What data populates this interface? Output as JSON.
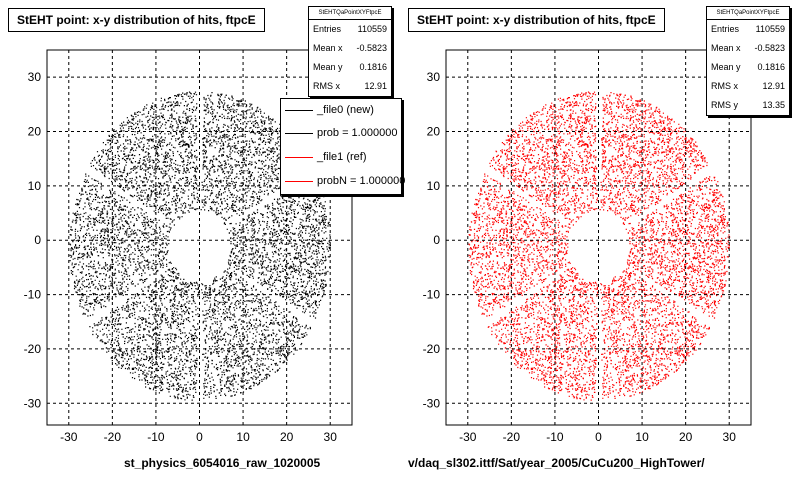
{
  "chart_data": [
    {
      "type": "scatter",
      "title": "StEHT point: x-y distribution of hits, ftpcE",
      "xlabel": "st_physics_6054016_raw_1020005",
      "ylabel": "",
      "xlim": [
        -35,
        35
      ],
      "ylim": [
        -34,
        35
      ],
      "xticks": [
        -30,
        -20,
        -10,
        0,
        10,
        20,
        30
      ],
      "yticks": [
        -30,
        -20,
        -10,
        0,
        10,
        20,
        30
      ],
      "grid": true,
      "color": "#000000",
      "distribution": {
        "inner_radius": 7,
        "outer_radius": 30,
        "center": [
          0,
          -1
        ]
      },
      "stats": {
        "name": "StEHTQaPointXYFtpcE",
        "rows": [
          {
            "label": "Entries",
            "value": "110559"
          },
          {
            "label": "Mean x",
            "value": "-0.5823"
          },
          {
            "label": "Mean y",
            "value": "0.1816"
          },
          {
            "label": "RMS x",
            "value": "12.91"
          }
        ]
      },
      "legend": [
        {
          "label": "_file0 (new)",
          "color": "#000000"
        },
        {
          "label": "prob = 1.000000",
          "color": "#000000"
        },
        {
          "label": "_file1 (ref)",
          "color": "#ff0000"
        },
        {
          "label": "probN = 1.000000",
          "color": "#ff0000"
        }
      ]
    },
    {
      "type": "scatter",
      "title": "StEHT point: x-y distribution of hits, ftpcE",
      "xlabel": "v/daq_sl302.ittf/Sat/year_2005/CuCu200_HighTower/",
      "ylabel": "",
      "xlim": [
        -35,
        35
      ],
      "ylim": [
        -34,
        35
      ],
      "xticks": [
        -30,
        -20,
        -10,
        0,
        10,
        20,
        30
      ],
      "yticks": [
        -30,
        -20,
        -10,
        0,
        10,
        20,
        30
      ],
      "grid": true,
      "color": "#ff0000",
      "distribution": {
        "inner_radius": 7,
        "outer_radius": 30,
        "center": [
          0,
          -1
        ]
      },
      "stats": {
        "name": "StEHTQaPointXYFtpcE",
        "rows": [
          {
            "label": "Entries",
            "value": "110559"
          },
          {
            "label": "Mean x",
            "value": "-0.5823"
          },
          {
            "label": "Mean y",
            "value": "0.1816"
          },
          {
            "label": "RMS x",
            "value": "12.91"
          },
          {
            "label": "RMS y",
            "value": "13.35"
          }
        ]
      }
    }
  ]
}
